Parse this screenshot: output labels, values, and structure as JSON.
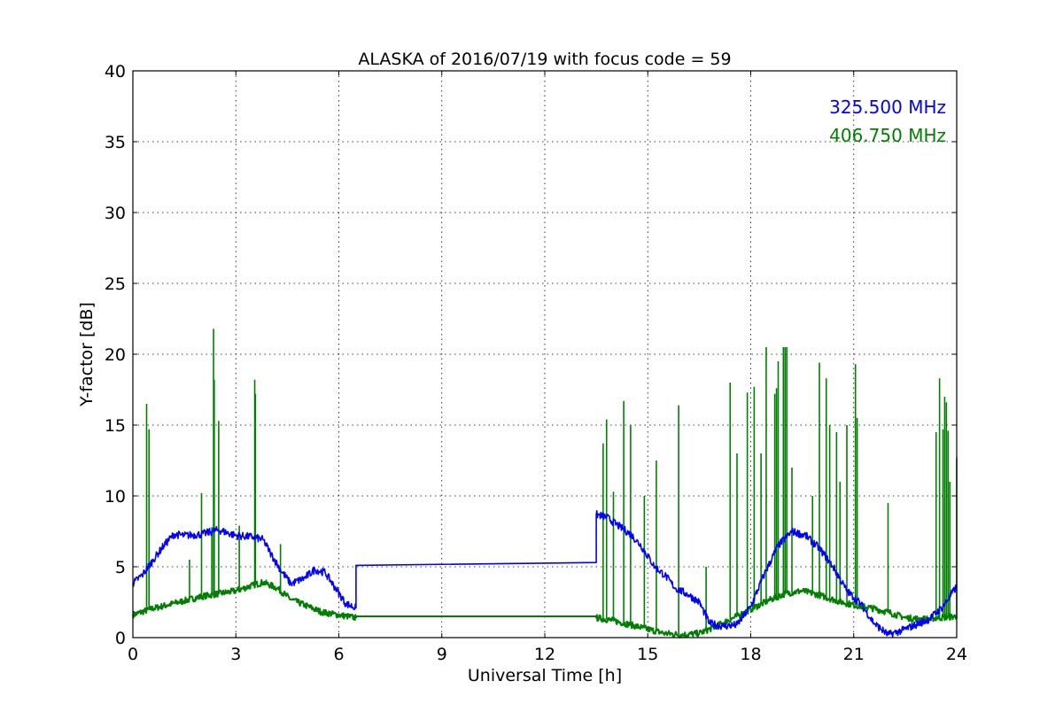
{
  "chart_data": {
    "type": "line",
    "title": "ALASKA of 2016/07/19 with focus code = 59",
    "xlabel": "Universal Time [h]",
    "ylabel": "Y-factor [dB]",
    "xlim": [
      0,
      24
    ],
    "ylim": [
      0,
      40
    ],
    "xticks": [
      0,
      3,
      6,
      9,
      12,
      15,
      18,
      21,
      24
    ],
    "yticks": [
      0,
      5,
      10,
      15,
      20,
      25,
      30,
      35,
      40
    ],
    "grid": true,
    "legend_position": "top-right",
    "series": [
      {
        "name": "325.500 MHz",
        "color": "#0000ff",
        "x": [
          0,
          0.3,
          0.6,
          0.9,
          1.2,
          1.5,
          2.0,
          2.5,
          3.0,
          3.5,
          3.8,
          4.0,
          4.3,
          4.6,
          5.0,
          5.3,
          5.6,
          5.9,
          6.2,
          6.5,
          6.5,
          13.5,
          13.5,
          13.8,
          14.2,
          14.5,
          14.8,
          15.2,
          15.5,
          15.8,
          16.2,
          16.5,
          16.8,
          17.2,
          17.6,
          18.0,
          18.4,
          18.8,
          19.2,
          19.6,
          20.0,
          20.4,
          20.8,
          21.2,
          21.6,
          22.0,
          22.4,
          22.8,
          23.2,
          23.6,
          24.0
        ],
        "y": [
          3.8,
          4.5,
          5.5,
          6.5,
          7.3,
          7.2,
          7.3,
          7.6,
          7.2,
          7.1,
          6.9,
          6.0,
          4.8,
          3.8,
          4.2,
          4.8,
          4.6,
          3.5,
          2.4,
          2.1,
          5.1,
          5.3,
          8.7,
          8.5,
          7.8,
          7.3,
          6.5,
          5.0,
          4.4,
          3.5,
          3.0,
          2.5,
          1.0,
          0.8,
          0.9,
          2.2,
          4.5,
          6.5,
          7.5,
          7.2,
          6.3,
          5.0,
          3.3,
          2.4,
          1.0,
          0.2,
          0.5,
          0.9,
          1.3,
          2.2,
          3.6
        ]
      },
      {
        "name": "406.750 MHz",
        "color": "#008000",
        "x": [
          0,
          0.5,
          1.0,
          1.5,
          2.0,
          2.5,
          3.0,
          3.5,
          3.8,
          4.2,
          4.6,
          5.0,
          5.5,
          6.0,
          6.5,
          6.5,
          13.5,
          13.5,
          14.0,
          14.5,
          15.0,
          15.5,
          16.0,
          16.5,
          17.0,
          17.5,
          18.0,
          18.5,
          19.0,
          19.5,
          20.0,
          20.5,
          21.0,
          21.5,
          22.0,
          22.5,
          23.0,
          23.5,
          24.0
        ],
        "y": [
          1.6,
          2.0,
          2.3,
          2.6,
          2.9,
          3.1,
          3.3,
          3.7,
          3.9,
          3.5,
          2.7,
          2.3,
          1.8,
          1.6,
          1.4,
          1.5,
          1.5,
          1.4,
          1.2,
          0.9,
          0.6,
          0.3,
          0.2,
          0.3,
          0.8,
          1.4,
          2.0,
          2.6,
          3.1,
          3.3,
          3.0,
          2.6,
          2.3,
          2.1,
          1.8,
          1.4,
          1.3,
          1.4,
          1.5
        ],
        "spikes": [
          [
            0.4,
            16.5
          ],
          [
            0.47,
            14.7
          ],
          [
            1.65,
            5.5
          ],
          [
            2.0,
            10.2
          ],
          [
            2.3,
            7.8
          ],
          [
            2.35,
            21.8
          ],
          [
            2.37,
            18.2
          ],
          [
            2.5,
            15.3
          ],
          [
            3.1,
            7.9
          ],
          [
            3.55,
            18.2
          ],
          [
            3.57,
            17.2
          ],
          [
            4.3,
            6.6
          ],
          [
            13.7,
            13.7
          ],
          [
            13.8,
            15.4
          ],
          [
            14.0,
            10.3
          ],
          [
            14.3,
            16.7
          ],
          [
            14.5,
            15.0
          ],
          [
            14.9,
            10.0
          ],
          [
            15.25,
            12.5
          ],
          [
            15.9,
            16.4
          ],
          [
            16.7,
            5.0
          ],
          [
            17.4,
            18.0
          ],
          [
            17.6,
            13.0
          ],
          [
            17.9,
            17.3
          ],
          [
            18.1,
            17.7
          ],
          [
            18.3,
            13.0
          ],
          [
            18.45,
            20.5
          ],
          [
            18.7,
            17.2
          ],
          [
            18.75,
            17.6
          ],
          [
            18.8,
            19.5
          ],
          [
            18.95,
            20.5
          ],
          [
            19.0,
            20.5
          ],
          [
            19.05,
            20.5
          ],
          [
            19.2,
            12.0
          ],
          [
            19.8,
            10.0
          ],
          [
            20.0,
            19.4
          ],
          [
            20.2,
            18.3
          ],
          [
            20.3,
            15.0
          ],
          [
            20.5,
            14.5
          ],
          [
            20.6,
            11.0
          ],
          [
            20.8,
            15.0
          ],
          [
            21.05,
            19.3
          ],
          [
            21.1,
            15.5
          ],
          [
            22.0,
            9.5
          ],
          [
            23.4,
            14.5
          ],
          [
            23.5,
            18.3
          ],
          [
            23.6,
            14.7
          ],
          [
            23.65,
            17.0
          ],
          [
            23.7,
            16.6
          ],
          [
            23.75,
            14.6
          ],
          [
            23.8,
            11.0
          ],
          [
            24.0,
            12.7
          ]
        ]
      }
    ]
  }
}
